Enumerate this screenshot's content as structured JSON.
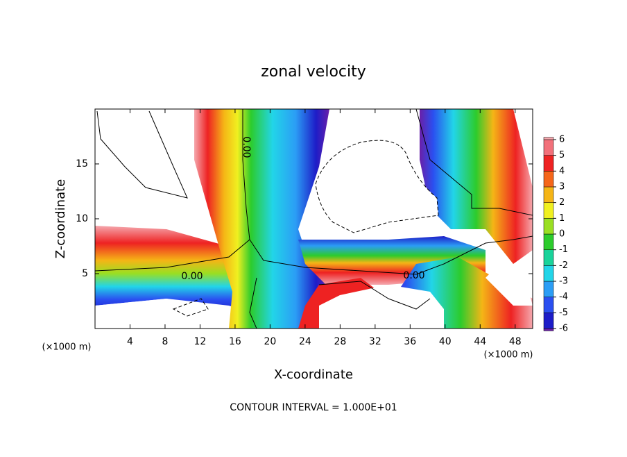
{
  "chart_data": {
    "type": "contour",
    "title": "zonal velocity",
    "xlabel": "X-coordinate",
    "ylabel": "Z-coordinate",
    "x_unit_label": "(×1000 m)",
    "footer": "CONTOUR INTERVAL = 1.000E+01",
    "contour_label": "0.00",
    "xlim": [
      0,
      50
    ],
    "xticks": [
      4,
      8,
      12,
      16,
      20,
      24,
      28,
      32,
      36,
      40,
      44,
      48
    ],
    "ylim": [
      0,
      20
    ],
    "yticks": [
      5,
      10,
      15
    ],
    "colorbar": {
      "levels": [
        -6,
        -5,
        -4,
        -3,
        -2,
        -1,
        0,
        1,
        2,
        3,
        4,
        5,
        6
      ],
      "colors": [
        "#6a1fa8",
        "#1d1dc8",
        "#2a4ff0",
        "#2b9df5",
        "#22d5e8",
        "#19d39a",
        "#2ccc2c",
        "#9adf22",
        "#f0f020",
        "#f5b516",
        "#f5661a",
        "#ee2222",
        "#f2707a",
        "#f5a8ae"
      ]
    }
  }
}
